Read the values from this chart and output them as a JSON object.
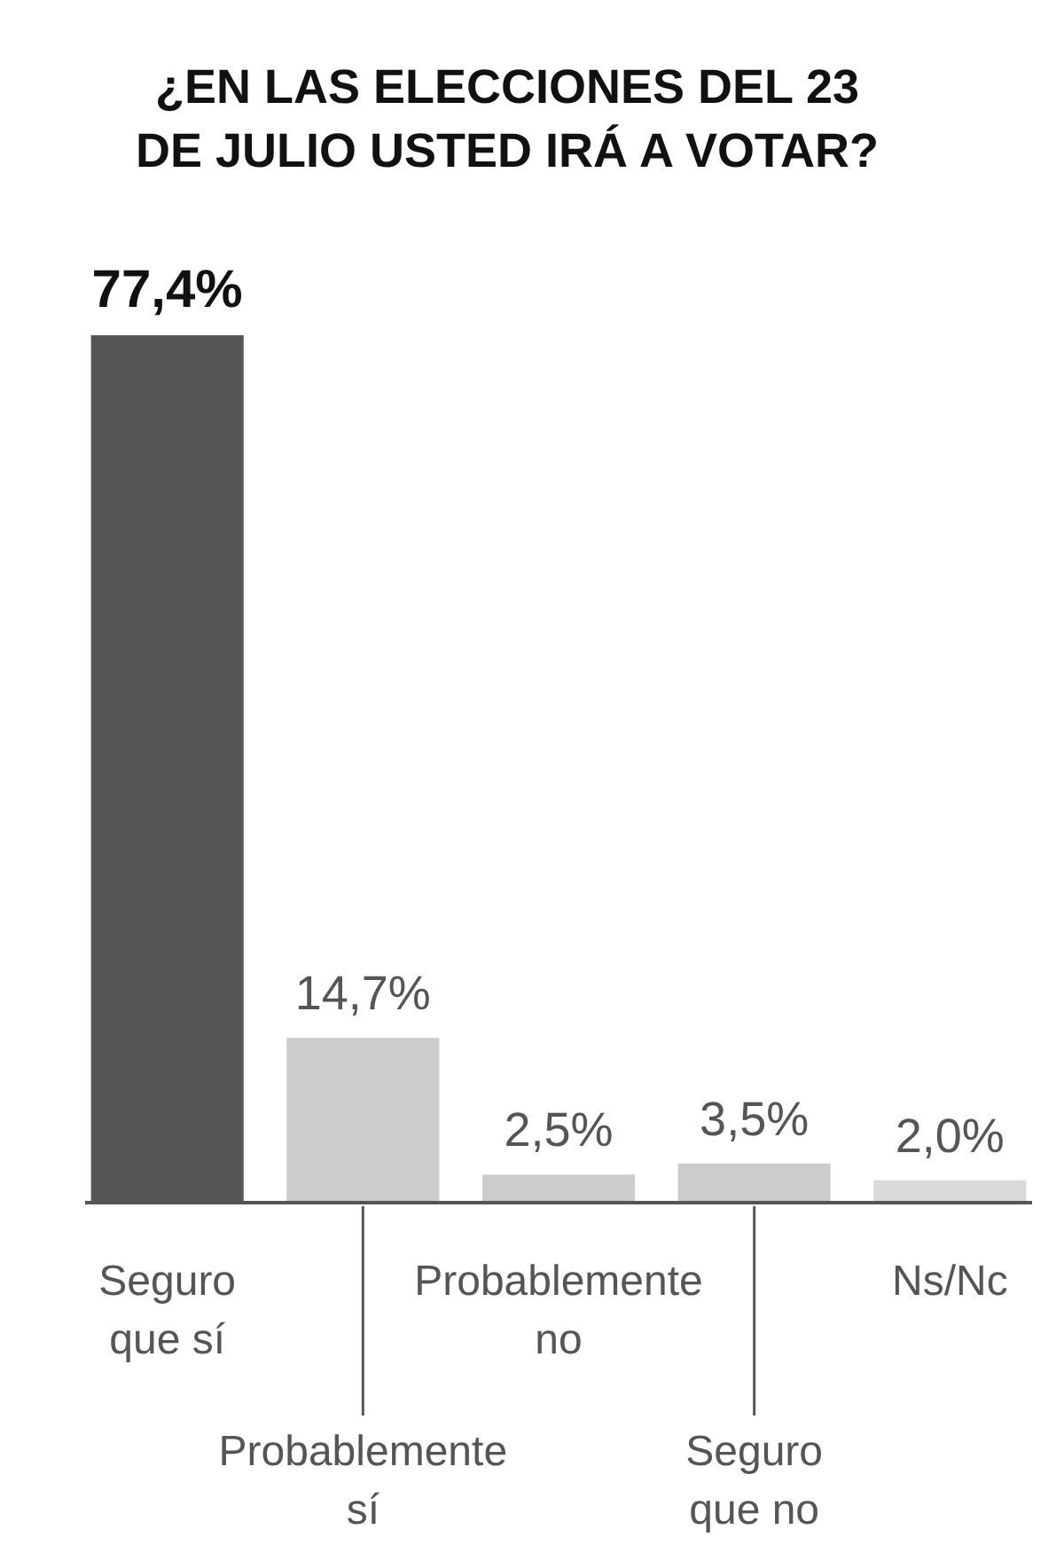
{
  "chart_data": {
    "type": "bar",
    "title": "¿EN LAS ELECCIONES DEL 23 DE JULIO USTED IRÁ A VOTAR?",
    "categories": [
      "Seguro que sí",
      "Probablemente sí",
      "Probablemente no",
      "Seguro que no",
      "Ns/Nc"
    ],
    "values": [
      77.4,
      14.7,
      2.5,
      3.5,
      2.0
    ],
    "colors": [
      "#555555",
      "#cccccc",
      "#cccccc",
      "#cccccc",
      "#d9d9d9"
    ],
    "value_labels": [
      "77,4%",
      "14,7%",
      "2,5%",
      "3,5%",
      "2,0%"
    ]
  }
}
